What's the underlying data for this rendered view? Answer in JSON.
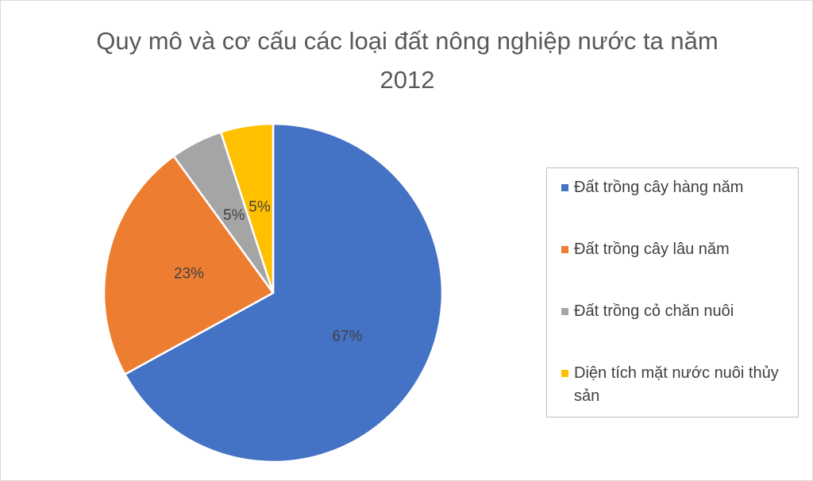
{
  "chart_data": {
    "type": "pie",
    "title": "Quy mô và cơ cấu các loại đất nông nghiệp nước ta năm 2012",
    "categories": [
      "Đất trồng cây hàng năm",
      "Đất trồng cây lâu năm",
      "Đất trồng cỏ chăn nuôi",
      "Diện tích mặt nước nuôi thủy sản"
    ],
    "values": [
      67,
      23,
      5,
      5
    ],
    "value_labels": [
      "67%",
      "23%",
      "5%",
      "5%"
    ],
    "colors": [
      "#4472c4",
      "#ed7d31",
      "#a5a5a5",
      "#ffc000"
    ],
    "legend": "right"
  }
}
